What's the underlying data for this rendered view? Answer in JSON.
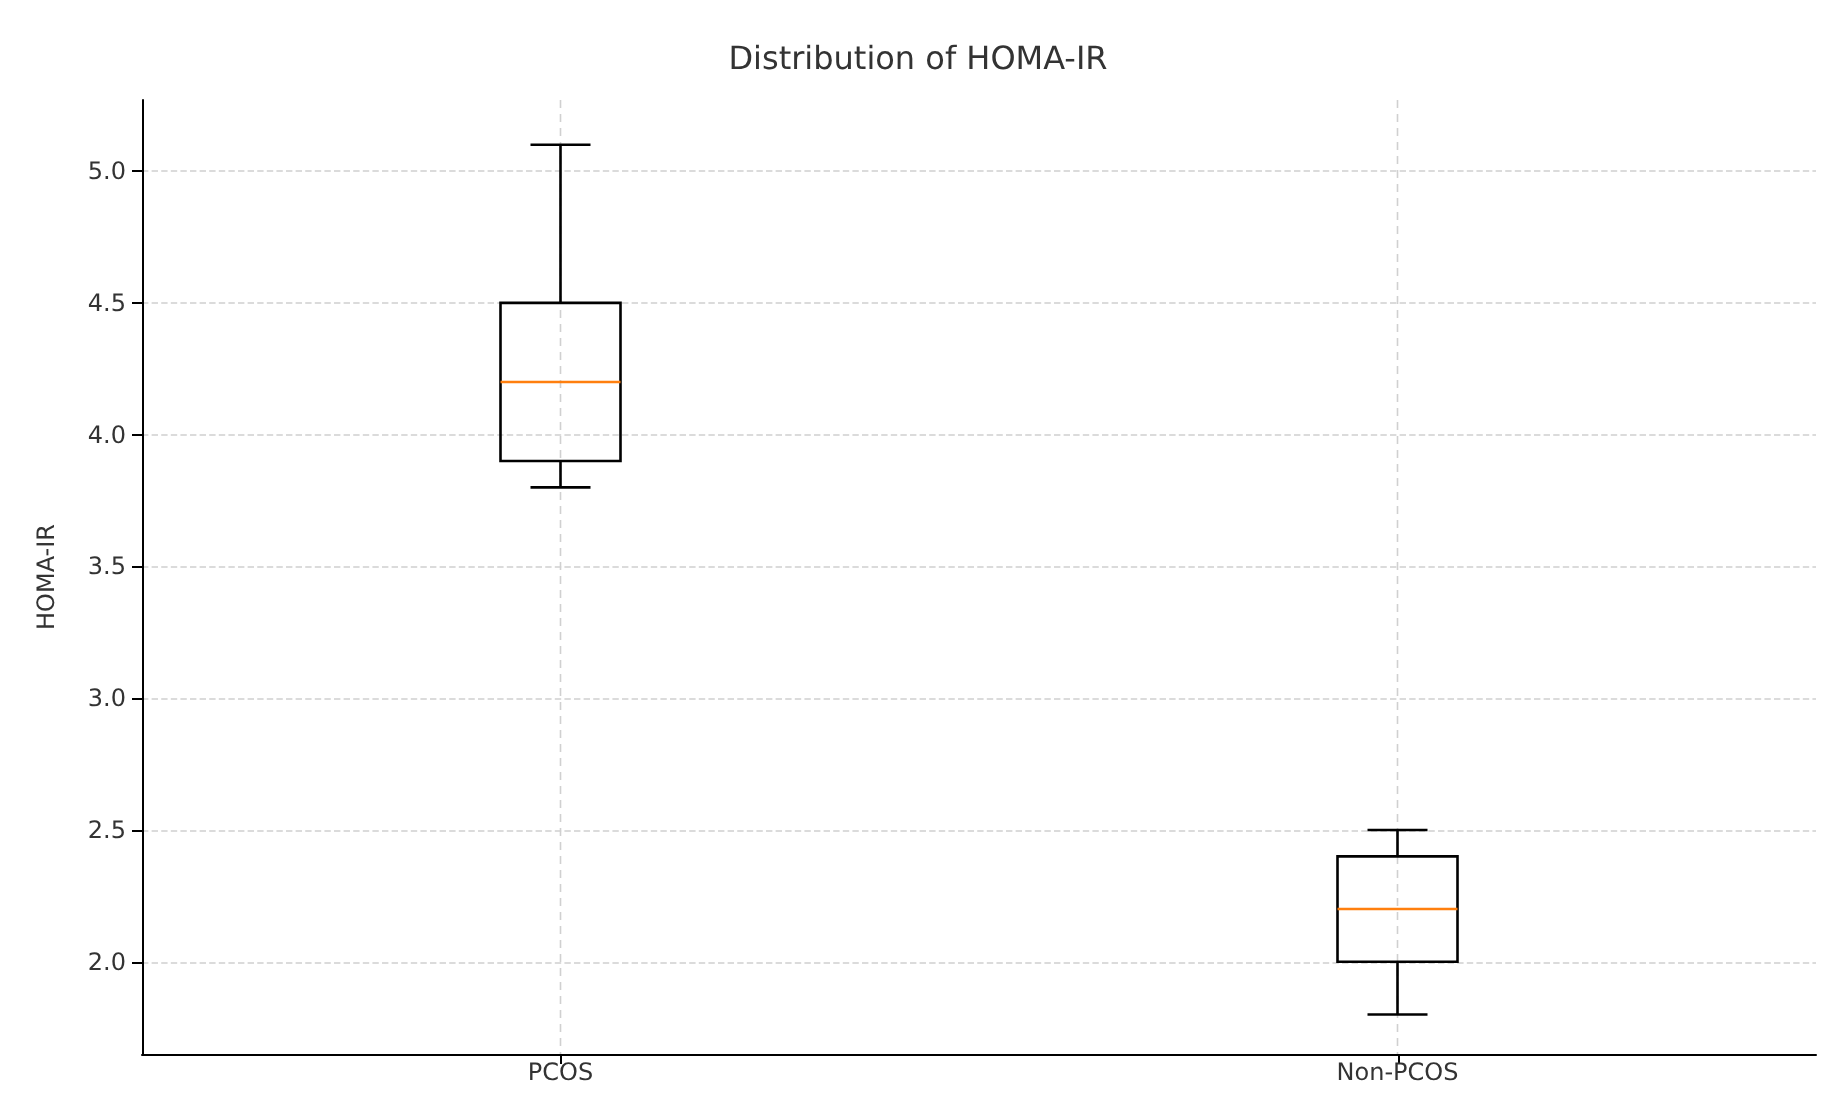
{
  "chart_data": {
    "type": "box",
    "title": "Distribution of HOMA-IR",
    "ylabel": "HOMA-IR",
    "categories": [
      "PCOS",
      "Non-PCOS"
    ],
    "boxes": [
      {
        "low": 3.8,
        "q1": 3.9,
        "median": 4.2,
        "q3": 4.5,
        "high": 5.1
      },
      {
        "low": 1.8,
        "q1": 2.0,
        "median": 2.2,
        "q3": 2.4,
        "high": 2.5
      }
    ],
    "ylim": [
      1.65,
      5.27
    ],
    "yticks": [
      {
        "value": 2,
        "label": "2.0"
      },
      2.5,
      {
        "value": 3,
        "label": "3.0"
      },
      3.5,
      {
        "value": 4,
        "label": "4.0"
      },
      4.5,
      {
        "value": 5,
        "label": "5.0"
      }
    ],
    "grid": true
  }
}
